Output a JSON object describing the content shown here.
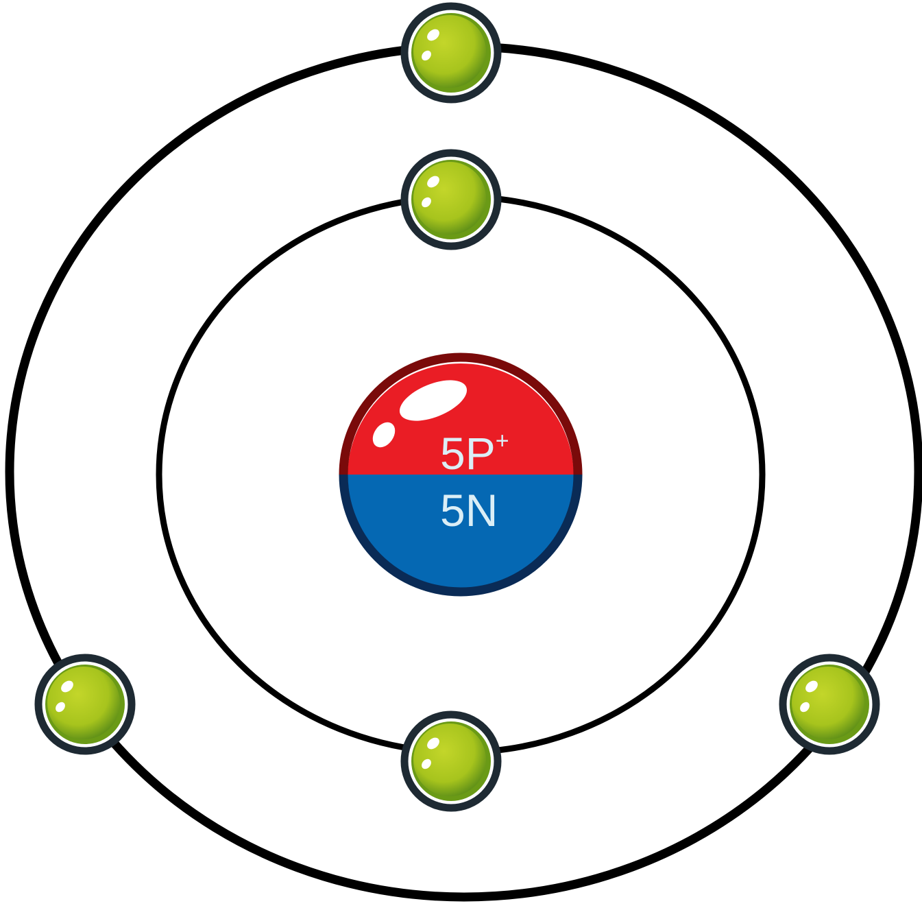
{
  "nucleus": {
    "protons": "5",
    "proton_symbol": "P",
    "proton_charge": "+",
    "neutrons_label": "5N",
    "colors": {
      "proton_half": "#ea1d25",
      "proton_rim": "#7a0a0a",
      "neutron_half": "#0568b3",
      "neutron_rim": "#0a2b56"
    }
  },
  "shells": [
    {
      "name": "inner-shell",
      "electron_count": 2
    },
    {
      "name": "outer-shell",
      "electron_count": 3
    }
  ],
  "electron": {
    "fill": "#a8c81c",
    "rim": "#6a9a16",
    "outline": "#1e2a33"
  }
}
